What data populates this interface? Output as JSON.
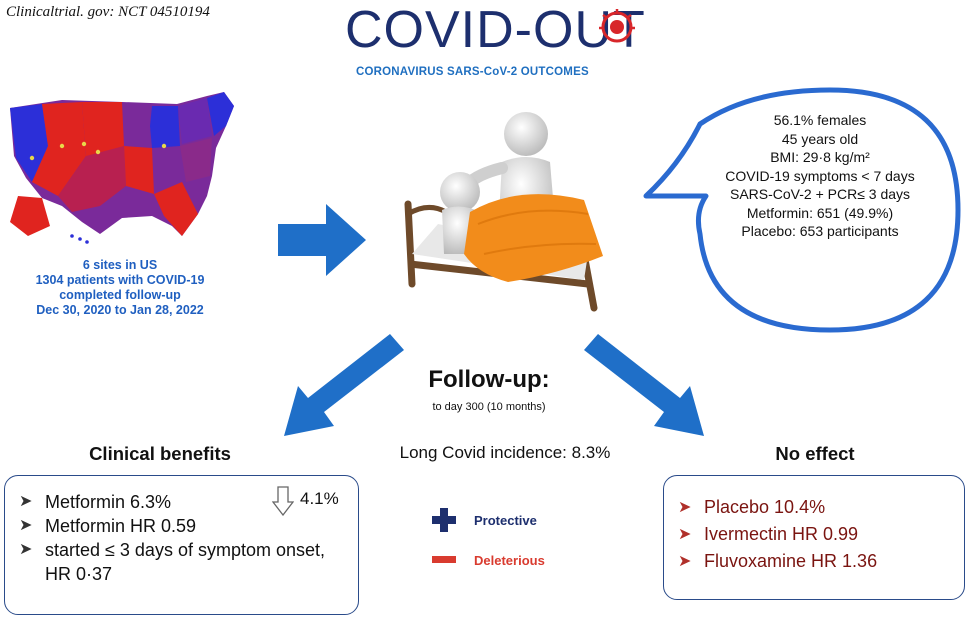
{
  "trial_reference": "Clinicaltrial. gov: NCT 04510194",
  "logo": {
    "title": "COVID-OUT",
    "subtitle": "CORONAVIRUS SARS-CoV-2 OUTCOMES"
  },
  "sites": {
    "lines": [
      "6 sites in US",
      "1304 patients with COVID-19",
      "completed follow-up",
      "Dec 30, 2020 to Jan 28, 2022"
    ]
  },
  "demographics": {
    "lines": [
      "56.1% females",
      "45 years old",
      "BMI: 29·8 kg/m²",
      "COVID-19 symptoms < 7 days",
      "SARS-CoV-2 + PCR≤ 3 days",
      "Metformin: 651 (49.9%)",
      "Placebo: 653 participants"
    ]
  },
  "followup": {
    "title": "Follow-up:",
    "subtitle": "to day 300 (10 months)"
  },
  "long_covid": "Long Covid incidence: 8.3%",
  "clinical_benefits": {
    "title": "Clinical benefits",
    "items": [
      "Metformin 6.3%",
      "Metformin HR 0.59",
      "started ≤ 3 days of symptom onset, HR 0·37"
    ],
    "delta": "4.1%"
  },
  "no_effect": {
    "title": "No effect",
    "items": [
      "Placebo 10.4%",
      "Ivermectin HR 0.99",
      "Fluvoxamine HR 1.36"
    ]
  },
  "legend": {
    "protective": "Protective",
    "deleterious": "Deleterious"
  },
  "colors": {
    "arrow_blue": "#1f6fc8",
    "logo_navy": "#1d2f6e",
    "protective_navy": "#1d2f6e",
    "deleterious_red": "#d93b2f",
    "no_effect_text": "#7a1410",
    "map_red": "#e0241f",
    "map_blue": "#2c2fd8",
    "map_purple": "#7a2a9a",
    "bed_sheet": "#f28c1b"
  },
  "icons": [
    "up-arrow-outline-icon",
    "plus-icon",
    "minus-icon",
    "right-arrow-icon",
    "down-left-arrow-icon",
    "down-right-arrow-icon",
    "speech-bubble",
    "us-map",
    "bed-patient-illustration"
  ]
}
